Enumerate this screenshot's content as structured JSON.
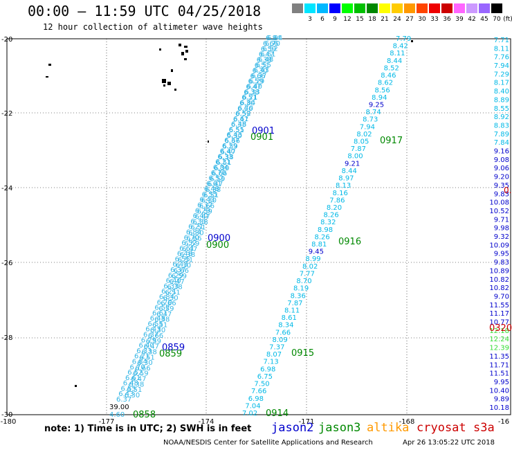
{
  "header": {
    "title": "00:00 – 11:59 UTC 04/25/2018",
    "subtitle": "12 hour collection of altimeter wave heights"
  },
  "colorbar": {
    "unit_label": "(ft)",
    "bins": [
      {
        "label": "",
        "color": "#808080"
      },
      {
        "label": "3",
        "color": "#00e5ff"
      },
      {
        "label": "6",
        "color": "#00b8ff"
      },
      {
        "label": "9",
        "color": "#0000ff"
      },
      {
        "label": "12",
        "color": "#00ff00"
      },
      {
        "label": "15",
        "color": "#00c000"
      },
      {
        "label": "18",
        "color": "#008800"
      },
      {
        "label": "21",
        "color": "#ffff00"
      },
      {
        "label": "24",
        "color": "#ffcc00"
      },
      {
        "label": "27",
        "color": "#ff9900"
      },
      {
        "label": "30",
        "color": "#ff4400"
      },
      {
        "label": "33",
        "color": "#ee0000"
      },
      {
        "label": "36",
        "color": "#cc0000"
      },
      {
        "label": "39",
        "color": "#ff66ff"
      },
      {
        "label": "42",
        "color": "#cc99ff"
      },
      {
        "label": "45",
        "color": "#9966ff"
      },
      {
        "label": "70",
        "color": "#000000"
      }
    ]
  },
  "axes": {
    "lon_labels": [
      "-180",
      "-177",
      "-174",
      "-171",
      "-168",
      "-16"
    ],
    "lat_labels": [
      "-20",
      "-22",
      "-24",
      "-26",
      "-28",
      "-30"
    ]
  },
  "tracks": {
    "jason2_times": [
      "0901",
      "0900",
      "0859"
    ],
    "jason3_times": [
      "0901",
      "0900",
      "0859",
      "0858",
      "0917",
      "0916",
      "0915",
      "0914"
    ],
    "red_time": "0320",
    "red_partial": "0.",
    "track_c": {
      "upper_values": [
        "7.79",
        "8.42",
        "8.11",
        "8.44",
        "8.52",
        "8.46",
        "8.62",
        "8.56",
        "8.94",
        "9.25",
        "8.74",
        "8.73",
        "7.94",
        "8.02",
        "8.05",
        "7.87",
        "8.00",
        "9.21",
        "8.44",
        "8.97",
        "8.13",
        "8.16",
        "7.86",
        "8.20",
        "8.26",
        "8.32",
        "8.98",
        "8.26",
        "8.81",
        "9.45",
        "8.99",
        "8.02",
        "7.77",
        "8.70",
        "8.19",
        "8.36",
        "7.87",
        "8.11",
        "8.61",
        "8.34",
        "7.66",
        "8.09",
        "7.37",
        "8.07",
        "7.13",
        "6.98",
        "6.75",
        "7.50",
        "7.66",
        "6.98",
        "7.04",
        "7.02"
      ]
    },
    "track_d": {
      "values": [
        "7.71",
        "8.11",
        "7.76",
        "7.94",
        "7.29",
        "8.17",
        "8.40",
        "8.89",
        "8.55",
        "8.92",
        "8.83",
        "7.89",
        "7.84",
        "9.16",
        "9.08",
        "9.06",
        "9.20",
        "9.35",
        "9.83",
        "10.08",
        "10.52",
        "9.71",
        "9.98",
        "9.32",
        "10.09",
        "9.95",
        "9.83",
        "10.89",
        "10.82",
        "10.82",
        "9.70",
        "11.55",
        "11.17",
        "10.77",
        "12.18",
        "12.24",
        "12.39",
        "11.35",
        "11.71",
        "11.51",
        "9.95",
        "10.40",
        "9.89",
        "10.18"
      ]
    },
    "track_ab": {
      "top_value": "6.84",
      "bottom_values": [
        "39.00",
        "4.60"
      ]
    }
  },
  "legend": {
    "note": "note: 1) Time is in UTC; 2) SWH is in feet",
    "jason2": "jason2",
    "jason3": "jason3",
    "altika": "altika",
    "cryosat": "cryosat",
    "s3a": "s3a",
    "colors": {
      "jason2": "#0000cc",
      "jason3": "#008800",
      "altika": "#ff9900",
      "cryosat": "#cc0000",
      "s3a": "#cc0000"
    }
  },
  "footer": {
    "credit": "NOAA/NESDIS Center for Satellite Applications and Research",
    "timestamp": "Apr 26 13:05:22 UTC 2018"
  }
}
